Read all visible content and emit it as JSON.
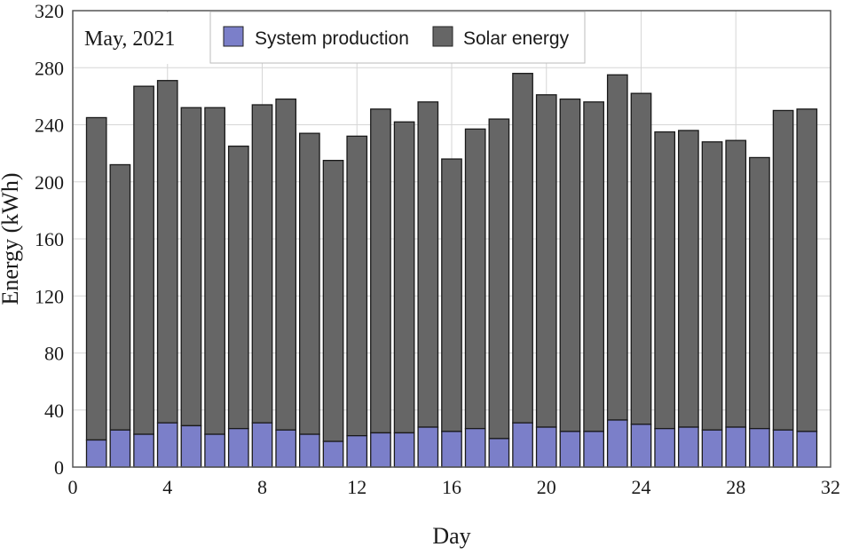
{
  "chart_data": {
    "type": "bar",
    "stacked": true,
    "annotation": "May, 2021",
    "xlabel": "Day",
    "ylabel": "Energy (kWh)",
    "xlim": [
      0,
      32
    ],
    "ylim": [
      0,
      320
    ],
    "xticks": [
      0,
      4,
      8,
      12,
      16,
      20,
      24,
      28,
      32
    ],
    "yticks": [
      0,
      40,
      80,
      120,
      160,
      200,
      240,
      280,
      320
    ],
    "grid": true,
    "legend_position": "top-center",
    "x": [
      1,
      2,
      3,
      4,
      5,
      6,
      7,
      8,
      9,
      10,
      11,
      12,
      13,
      14,
      15,
      16,
      17,
      18,
      19,
      20,
      21,
      22,
      23,
      24,
      25,
      26,
      27,
      28,
      29,
      30,
      31
    ],
    "series": [
      {
        "name": "System production",
        "color": "#7b7fc9",
        "values": [
          19,
          26,
          23,
          31,
          29,
          23,
          27,
          31,
          26,
          23,
          18,
          22,
          24,
          24,
          28,
          25,
          27,
          20,
          31,
          28,
          25,
          25,
          33,
          30,
          27,
          28,
          26,
          28,
          27,
          26,
          25
        ]
      },
      {
        "name": "Solar energy",
        "color": "#666666",
        "values": [
          245,
          212,
          267,
          271,
          252,
          252,
          225,
          254,
          258,
          234,
          215,
          232,
          251,
          242,
          256,
          216,
          237,
          244,
          276,
          261,
          258,
          256,
          275,
          262,
          235,
          236,
          228,
          229,
          217,
          250,
          251
        ]
      }
    ]
  }
}
